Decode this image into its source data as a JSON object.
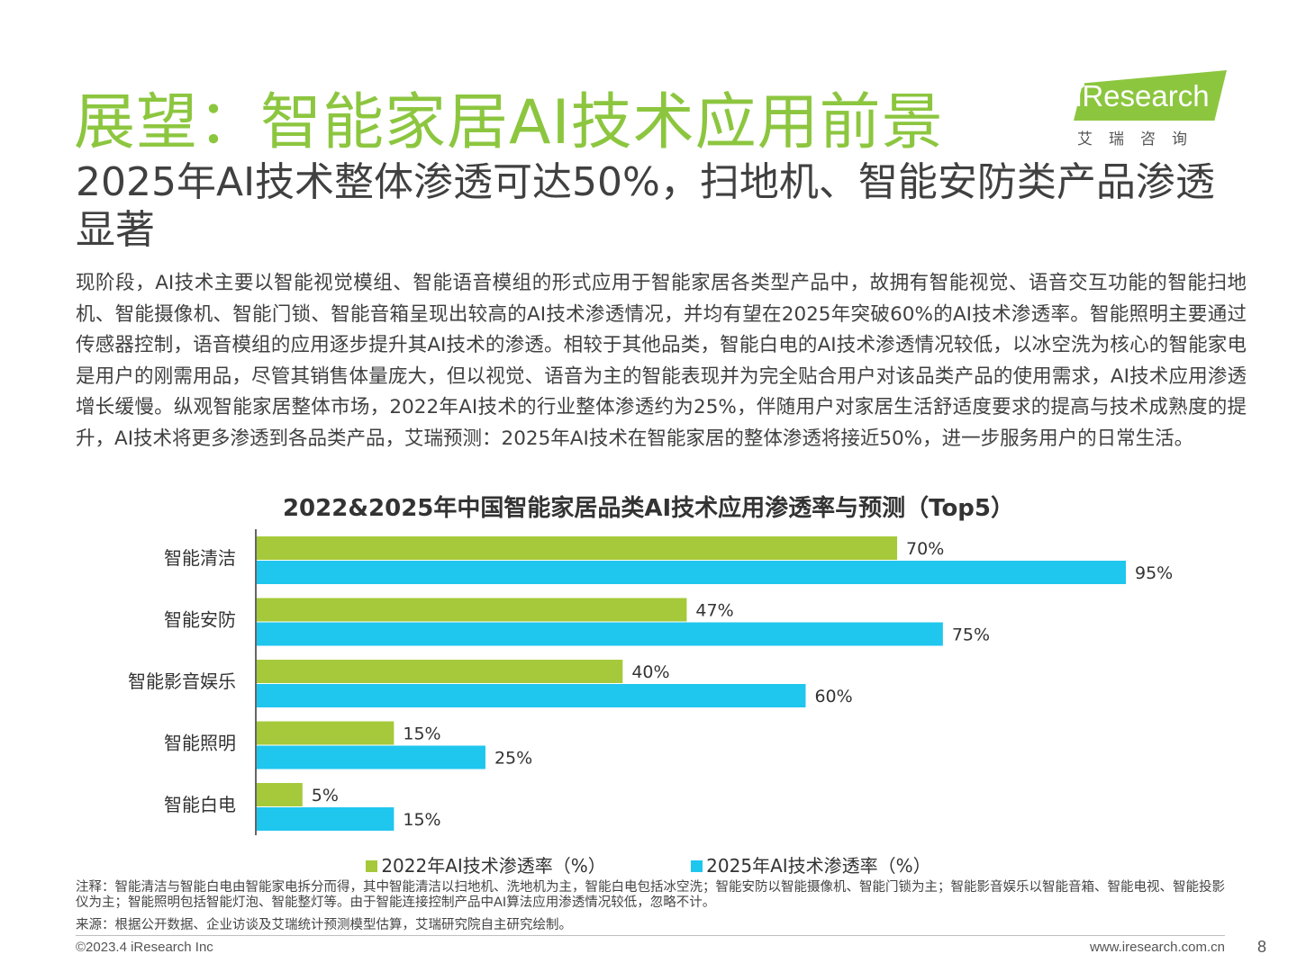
{
  "header": {
    "title": "展望：智能家居AI技术应用前景",
    "subtitle": "2025年AI技术整体渗透可达50%，扫地机、智能安防类产品渗透显著",
    "logo": {
      "brand": "iResearch",
      "sub": "艾瑞咨询"
    }
  },
  "body": {
    "text": "现阶段，AI技术主要以智能视觉模组、智能语音模组的形式应用于智能家居各类型产品中，故拥有智能视觉、语音交互功能的智能扫地机、智能摄像机、智能门锁、智能音箱呈现出较高的AI技术渗透情况，并均有望在2025年突破60%的AI技术渗透率。智能照明主要通过传感器控制，语音模组的应用逐步提升其AI技术的渗透。相较于其他品类，智能白电的AI技术渗透情况较低，以冰空洗为核心的智能家电是用户的刚需用品，尽管其销售体量庞大，但以视觉、语音为主的智能表现并为完全贴合用户对该品类产品的使用需求，AI技术应用渗透增长缓慢。纵观智能家居整体市场，2022年AI技术的行业整体渗透约为25%，伴随用户对家居生活舒适度要求的提高与技术成熟度的提升，AI技术将更多渗透到各品类产品，艾瑞预测：2025年AI技术在智能家居的整体渗透将接近50%，进一步服务用户的日常生活。"
  },
  "chart_data": {
    "type": "bar",
    "orientation": "horizontal",
    "title": "2022&2025年中国智能家居品类AI技术应用渗透率与预测（Top5）",
    "categories": [
      "智能清洁",
      "智能安防",
      "智能影音娱乐",
      "智能照明",
      "智能白电"
    ],
    "series": [
      {
        "name": "2022年AI技术渗透率（%）",
        "values": [
          70,
          47,
          40,
          15,
          5
        ],
        "labels": [
          "70%",
          "47%",
          "40%",
          "15%",
          "5%"
        ],
        "color": "#a5c93a"
      },
      {
        "name": "2025年AI技术渗透率（%）",
        "values": [
          95,
          75,
          60,
          25,
          15
        ],
        "labels": [
          "95%",
          "75%",
          "60%",
          "25%",
          "15%"
        ],
        "color": "#1fc6ee"
      }
    ],
    "xlim": [
      0,
      100
    ],
    "grid": false,
    "legend": "bottom"
  },
  "footer": {
    "note": "注释：智能清洁与智能白电由智能家电拆分而得，其中智能清洁以扫地机、洗地机为主，智能白电包括冰空洗；智能安防以智能摄像机、智能门锁为主；智能影音娱乐以智能音箱、智能电视、智能投影仪为主；智能照明包括智能灯泡、智能整灯等。由于智能连接控制产品中AI算法应用渗透情况较低，忽略不计。",
    "source": "来源：根据公开数据、企业访谈及艾瑞统计预测模型估算，艾瑞研究院自主研究绘制。",
    "copyright": "©2023.4 iResearch Inc",
    "website": "www.iresearch.com.cn",
    "page": "8"
  }
}
